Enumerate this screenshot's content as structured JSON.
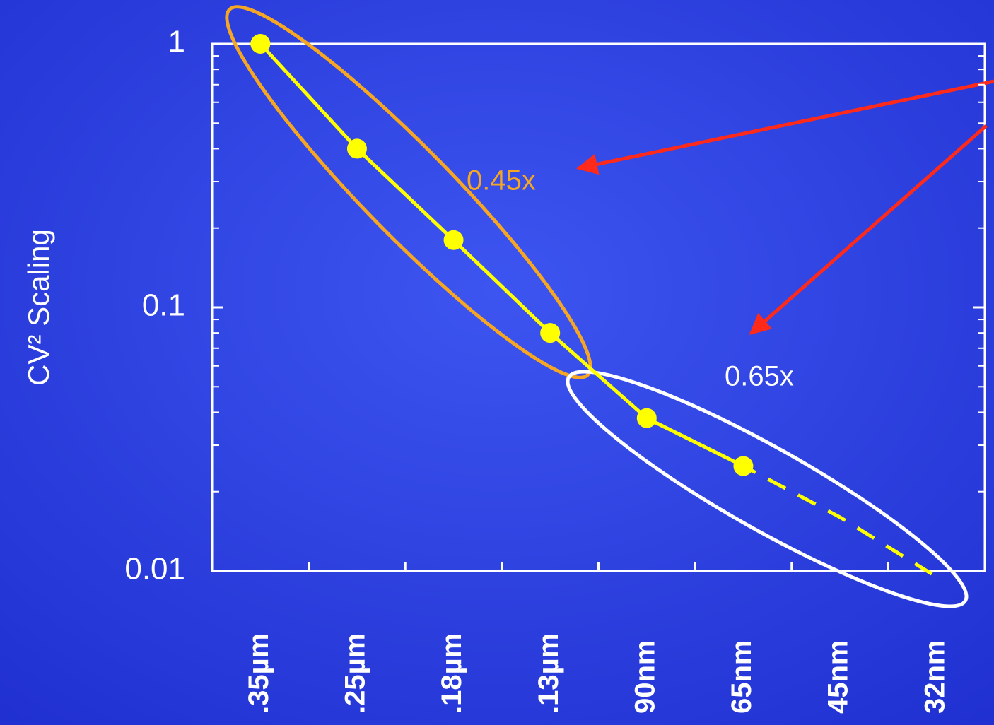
{
  "chart_data": {
    "type": "line",
    "y_label": "CV² Scaling",
    "categories": [
      ".35µm",
      ".25µm",
      ".18µm",
      ".13µm",
      "90nm",
      "65nm",
      "45nm",
      "32nm"
    ],
    "series": [
      {
        "color": "#ffff00",
        "dash": false,
        "markers": true,
        "values": [
          1,
          0.4,
          0.18,
          0.08,
          0.038,
          0.025,
          null,
          null
        ]
      },
      {
        "color": "#ffff00",
        "dash": true,
        "markers": false,
        "values": [
          null,
          null,
          null,
          null,
          0.038,
          0.025,
          0.016,
          0.0095
        ]
      }
    ],
    "ylim": [
      0.01,
      1
    ],
    "yticks": [
      0.01,
      0.1,
      1
    ],
    "log_y": true,
    "yminorticks": [
      0.02,
      0.03,
      0.04,
      0.05,
      0.06,
      0.07,
      0.08,
      0.09,
      0.2,
      0.3,
      0.4,
      0.5,
      0.6,
      0.7,
      0.8,
      0.9
    ],
    "annotations": [
      {
        "text": "0.45x",
        "color": "#f5a623"
      },
      {
        "text": "0.65x",
        "color": "#ffffff"
      }
    ]
  }
}
